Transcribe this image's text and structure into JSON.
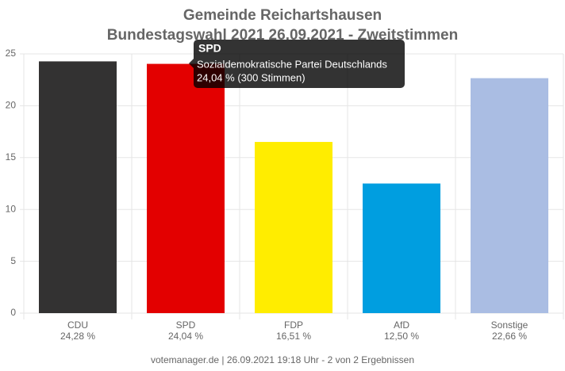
{
  "chart_data": {
    "type": "bar",
    "title": "Gemeinde Reichartshausen",
    "subtitle": "Bundestagswahl 2021 26.09.2021 - Zweitstimmen",
    "categories": [
      "CDU",
      "SPD",
      "FDP",
      "AfD",
      "Sonstige"
    ],
    "values": [
      24.28,
      24.04,
      16.51,
      12.5,
      22.66
    ],
    "value_labels": [
      "24,28 %",
      "24,04 %",
      "16,51 %",
      "12,50 %",
      "22,66 %"
    ],
    "colors": [
      "#333232",
      "#e30000",
      "#ffed00",
      "#009ee0",
      "#aabde3"
    ],
    "ylim": [
      0,
      25
    ],
    "yticks": [
      0,
      5,
      10,
      15,
      20,
      25
    ],
    "grid": true,
    "tooltip": {
      "title": "SPD",
      "lines": [
        "Sozialdemokratische Partei Deutschlands",
        "24,04 % (300 Stimmen)"
      ]
    },
    "footer": "votemanager.de | 26.09.2021 19:18 Uhr - 2 von 2 Ergebnissen"
  }
}
